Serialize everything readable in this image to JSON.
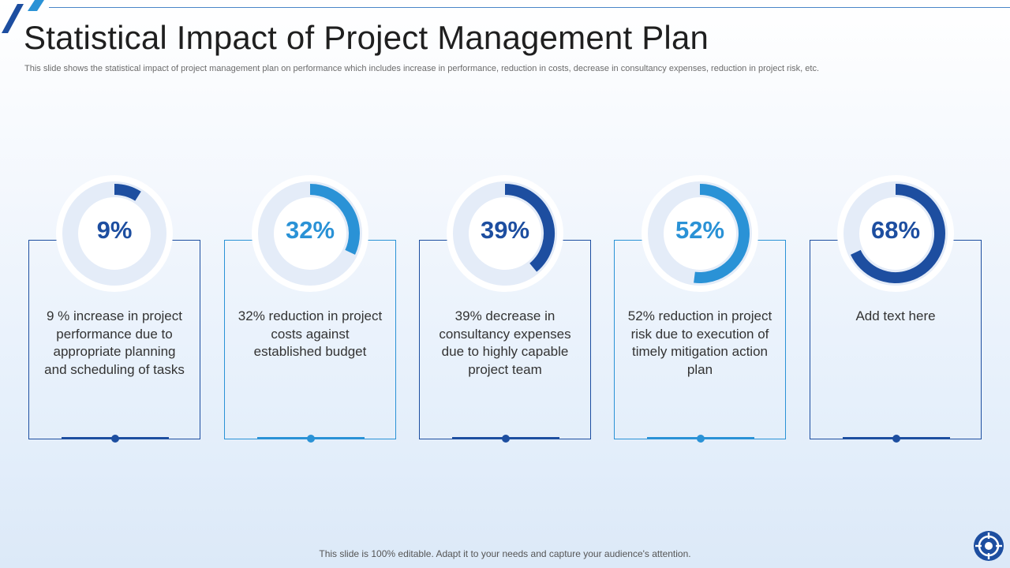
{
  "slide": {
    "title": "Statistical Impact of Project Management Plan",
    "subtitle": "This slide shows the statistical impact of project management plan on performance which includes increase in performance, reduction in costs, decrease in consultancy expenses, reduction in project risk, etc."
  },
  "colors": {
    "dark_blue": "#1d4ea0",
    "light_blue": "#2a92d6",
    "ring_track": "#e4ecf8"
  },
  "metrics": [
    {
      "value": 9,
      "label": "9%",
      "text": "9 % increase in project performance due to appropriate planning and scheduling of tasks",
      "accent": "dark"
    },
    {
      "value": 32,
      "label": "32%",
      "text": "32% reduction in project costs against established budget",
      "accent": "light"
    },
    {
      "value": 39,
      "label": "39%",
      "text": "39% decrease in consultancy expenses due to highly capable project team",
      "accent": "dark"
    },
    {
      "value": 52,
      "label": "52%",
      "text": "52% reduction in project risk due to execution of timely mitigation action plan",
      "accent": "light"
    },
    {
      "value": 68,
      "label": "68%",
      "text": "Add text here",
      "accent": "dark"
    }
  ],
  "footer": {
    "text": "This slide is 100% editable. Adapt it to your needs and capture your audience's attention."
  },
  "logo": {
    "icon": "target-icon"
  }
}
